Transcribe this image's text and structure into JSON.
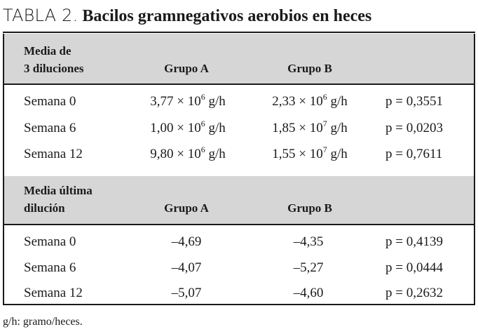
{
  "title": {
    "label": "TABLA 2.",
    "text": "Bacilos gramnegativos aerobios en heces"
  },
  "section1": {
    "header": {
      "col0_line1": "Media de",
      "col0_line2": "3 diluciones",
      "col1": "Grupo A",
      "col2": "Grupo B"
    },
    "rows": [
      {
        "label": "Semana 0",
        "a_mant": "3,77 × 10",
        "a_exp": "6",
        "b_mant": "2,33 × 10",
        "b_exp": "6",
        "unit": " g/h",
        "p": "p = 0,3551"
      },
      {
        "label": "Semana 6",
        "a_mant": "1,00 × 10",
        "a_exp": "6",
        "b_mant": "1,85 × 10",
        "b_exp": "7",
        "unit": " g/h",
        "p": "p = 0,0203"
      },
      {
        "label": "Semana 12",
        "a_mant": "9,80 × 10",
        "a_exp": "6",
        "b_mant": "1,55 × 10",
        "b_exp": "7",
        "unit": " g/h",
        "p": "p = 0,7611"
      }
    ]
  },
  "section2": {
    "header": {
      "col0_line1": "Media última",
      "col0_line2": "dilución",
      "col1": "Grupo A",
      "col2": "Grupo B"
    },
    "rows": [
      {
        "label": "Semana 0",
        "a": "–4,69",
        "b": "–4,35",
        "p": "p = 0,4139"
      },
      {
        "label": "Semana 6",
        "a": "–4,07",
        "b": "–5,27",
        "p": "p = 0,0444"
      },
      {
        "label": "Semana 12",
        "a": "–5,07",
        "b": "–4,60",
        "p": "p = 0,2632"
      }
    ]
  },
  "footnote": "g/h: gramo/heces.",
  "colors": {
    "header_band": "#d7d6d6",
    "rule": "#1a1a1a",
    "text": "#1a1a1a"
  }
}
